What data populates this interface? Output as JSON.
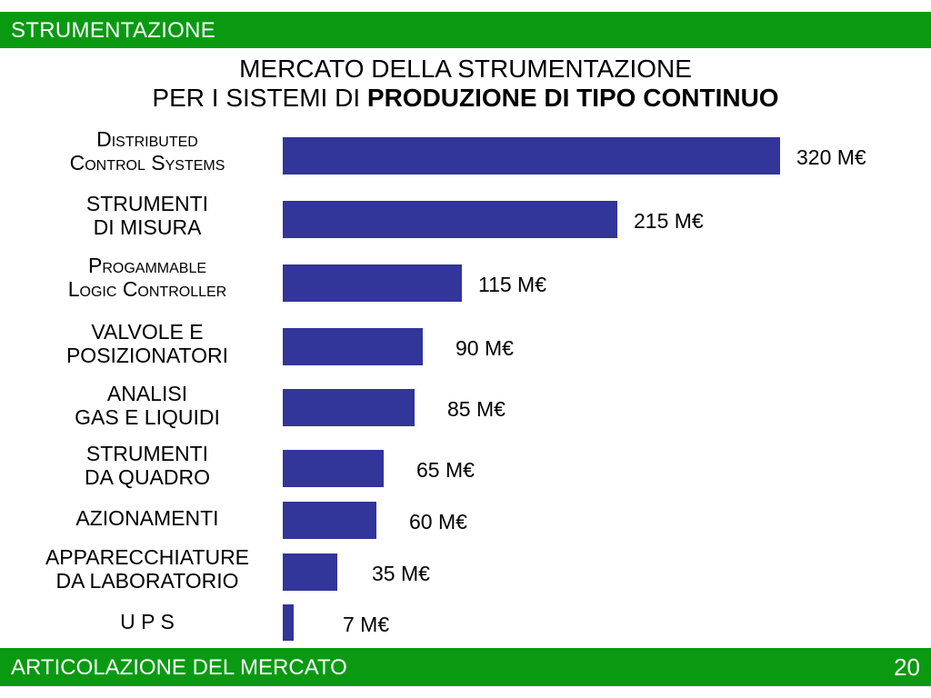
{
  "header": {
    "section_label": "STRUMENTAZIONE",
    "color": "#0a9a12"
  },
  "footer": {
    "label": "ARTICOLAZIONE DEL MERCATO",
    "page_number": "20",
    "color": "#0a9a12"
  },
  "chart_data": {
    "type": "bar",
    "orientation": "horizontal",
    "title_line1": "MERCATO DELLA STRUMENTAZIONE",
    "title_line2_prefix": "PER I SISTEMI DI ",
    "title_line2_bold": "PRODUZIONE DI TIPO CONTINUO",
    "bar_color": "#32359a",
    "categories": [
      [
        "Distributed",
        "Control Systems"
      ],
      [
        "STRUMENTI",
        "DI MISURA"
      ],
      [
        "Progammable",
        "Logic Controller"
      ],
      [
        "VALVOLE E",
        "POSIZIONATORI"
      ],
      [
        "ANALISI",
        "GAS E LIQUIDI"
      ],
      [
        "STRUMENTI",
        "DA QUADRO"
      ],
      [
        "AZIONAMENTI"
      ],
      [
        "APPARECCHIATURE",
        "DA LABORATORIO"
      ],
      [
        "U P S"
      ]
    ],
    "values": [
      320,
      215,
      115,
      90,
      85,
      65,
      60,
      35,
      7
    ],
    "value_labels": [
      "320 M€",
      "215 M€",
      "115 M€",
      "90 M€",
      "85 M€",
      "65 M€",
      "60 M€",
      "35 M€",
      "7 M€"
    ],
    "small_caps_categories": [
      0,
      2
    ]
  }
}
